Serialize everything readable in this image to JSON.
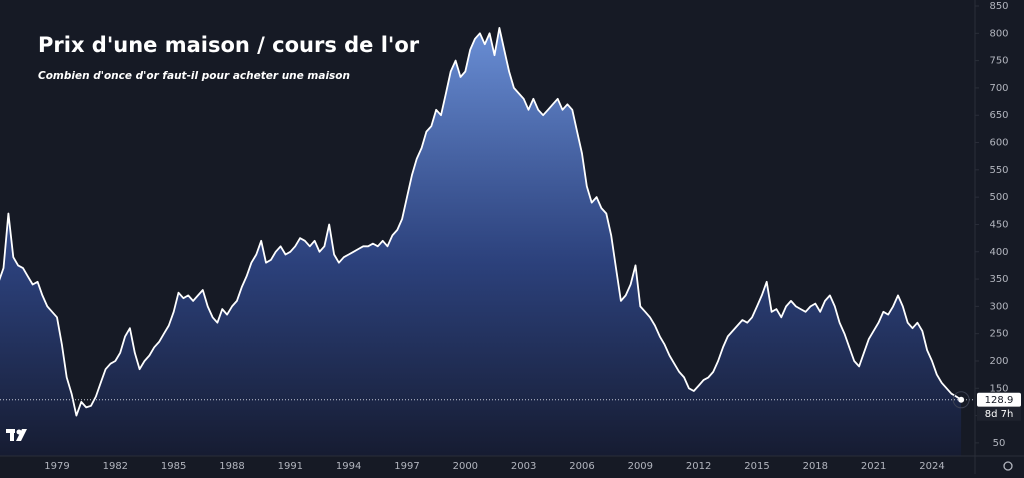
{
  "chart_data": {
    "type": "area",
    "title": "Prix d'une maison / cours de l'or",
    "subtitle": "Combien d'once d'or faut-il pour acheter une maison",
    "countdown": "8d 7h",
    "color": "#ffffff",
    "fill_color": "#5a7ec6",
    "categories": [
      null,
      null,
      null,
      null,
      null,
      null,
      null,
      null,
      null,
      null,
      null,
      null,
      "1979",
      null,
      null,
      null,
      null,
      null,
      null,
      null,
      null,
      null,
      null,
      null,
      "1982",
      null,
      null,
      null,
      null,
      null,
      null,
      null,
      null,
      null,
      null,
      null,
      "1985",
      null,
      null,
      null,
      null,
      null,
      null,
      null,
      null,
      null,
      null,
      null,
      "1988",
      null,
      null,
      null,
      null,
      null,
      null,
      null,
      null,
      null,
      null,
      null,
      "1991",
      null,
      null,
      null,
      null,
      null,
      null,
      null,
      null,
      null,
      null,
      null,
      "1994",
      null,
      null,
      null,
      null,
      null,
      null,
      null,
      null,
      null,
      null,
      null,
      "1997",
      null,
      null,
      null,
      null,
      null,
      null,
      null,
      null,
      null,
      null,
      null,
      "2000",
      null,
      null,
      null,
      null,
      null,
      null,
      null,
      null,
      null,
      null,
      null,
      "2003",
      null,
      null,
      null,
      null,
      null,
      null,
      null,
      null,
      null,
      null,
      null,
      "2006",
      null,
      null,
      null,
      null,
      null,
      null,
      null,
      null,
      null,
      null,
      null,
      "2009",
      null,
      null,
      null,
      null,
      null,
      null,
      null,
      null,
      null,
      null,
      null,
      "2012",
      null,
      null,
      null,
      null,
      null,
      null,
      null,
      null,
      null,
      null,
      null,
      "2015",
      null,
      null,
      null,
      null,
      null,
      null,
      null,
      null,
      null,
      null,
      null,
      "2018",
      null,
      null,
      null,
      null,
      null,
      null,
      null,
      null,
      null,
      null,
      null,
      "2021",
      null,
      null,
      null,
      null,
      null,
      null,
      null,
      null,
      null,
      null,
      null,
      "2024",
      null,
      null,
      null,
      null,
      null,
      null
    ],
    "values": [
      345,
      370,
      470,
      390,
      375,
      370,
      355,
      340,
      345,
      320,
      300,
      290,
      280,
      230,
      170,
      140,
      100,
      125,
      115,
      118,
      135,
      160,
      185,
      195,
      200,
      215,
      245,
      260,
      215,
      185,
      200,
      210,
      225,
      235,
      250,
      265,
      290,
      325,
      315,
      320,
      310,
      320,
      330,
      300,
      280,
      270,
      295,
      285,
      300,
      310,
      335,
      355,
      380,
      395,
      420,
      380,
      385,
      400,
      410,
      395,
      400,
      410,
      425,
      420,
      410,
      420,
      400,
      410,
      450,
      395,
      380,
      390,
      395,
      400,
      405,
      410,
      410,
      415,
      410,
      420,
      410,
      430,
      440,
      460,
      500,
      540,
      570,
      590,
      620,
      630,
      660,
      650,
      690,
      730,
      750,
      720,
      730,
      770,
      790,
      800,
      780,
      800,
      760,
      810,
      770,
      730,
      700,
      690,
      680,
      660,
      680,
      660,
      650,
      660,
      670,
      680,
      660,
      670,
      660,
      620,
      580,
      520,
      490,
      500,
      480,
      470,
      430,
      370,
      310,
      320,
      340,
      375,
      300,
      290,
      280,
      265,
      245,
      230,
      210,
      195,
      180,
      170,
      150,
      145,
      155,
      165,
      170,
      180,
      200,
      225,
      245,
      255,
      265,
      275,
      270,
      280,
      300,
      320,
      345,
      290,
      295,
      280,
      300,
      310,
      300,
      295,
      290,
      300,
      305,
      290,
      310,
      320,
      300,
      270,
      250,
      225,
      200,
      190,
      215,
      240,
      255,
      270,
      290,
      285,
      300,
      320,
      300,
      270,
      260,
      270,
      255,
      220,
      200,
      175,
      160,
      150,
      140,
      135,
      128.9
    ],
    "ylim": [
      26,
      861
    ],
    "yticks": [
      50,
      100,
      150,
      200,
      250,
      300,
      350,
      400,
      450,
      500,
      550,
      600,
      650,
      700,
      750,
      800,
      850
    ],
    "grid": false
  }
}
